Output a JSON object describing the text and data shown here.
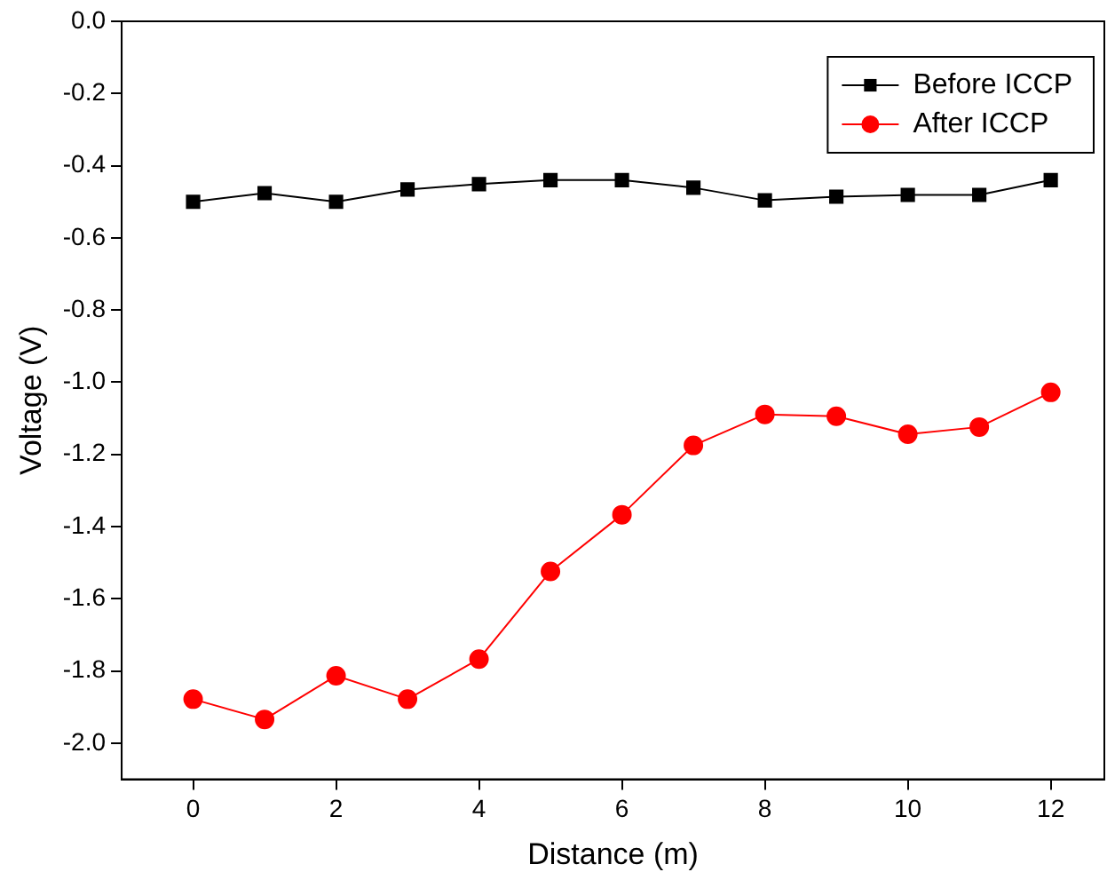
{
  "chart_data": {
    "type": "line",
    "xlabel": "Distance (m)",
    "ylabel": "Voltage (V)",
    "x": [
      0,
      1,
      2,
      3,
      4,
      5,
      6,
      7,
      8,
      9,
      10,
      11,
      12
    ],
    "series": [
      {
        "name": "Before ICCP",
        "color": "#000000",
        "marker": "square",
        "values": [
          -0.5,
          -0.476,
          -0.5,
          -0.466,
          -0.451,
          -0.44,
          -0.44,
          -0.461,
          -0.496,
          -0.486,
          -0.481,
          -0.481,
          -0.44
        ]
      },
      {
        "name": "After ICCP",
        "color": "#ff0000",
        "marker": "circle",
        "values": [
          -1.878,
          -1.934,
          -1.813,
          -1.878,
          -1.767,
          -1.524,
          -1.367,
          -1.175,
          -1.089,
          -1.094,
          -1.144,
          -1.124,
          -1.028
        ]
      }
    ],
    "xlim": [
      -1,
      12.75
    ],
    "xticks": [
      0,
      2,
      4,
      6,
      8,
      10,
      12
    ],
    "ylim": [
      -2.1,
      0
    ],
    "yticks": [
      {
        "value": 0,
        "label": "0.0"
      },
      {
        "value": -0.2,
        "label": "-0.2"
      },
      {
        "value": -0.4,
        "label": "-0.4"
      },
      {
        "value": -0.6,
        "label": "-0.6"
      },
      {
        "value": -0.8,
        "label": "-0.8"
      },
      {
        "value": -1,
        "label": "-1.0"
      },
      {
        "value": -1.2,
        "label": "-1.2"
      },
      {
        "value": -1.4,
        "label": "-1.4"
      },
      {
        "value": -1.6,
        "label": "-1.6"
      },
      {
        "value": -1.8,
        "label": "-1.8"
      },
      {
        "value": -2,
        "label": "-2.0"
      }
    ],
    "grid": false,
    "legend": "top right",
    "line_style": "solid"
  }
}
